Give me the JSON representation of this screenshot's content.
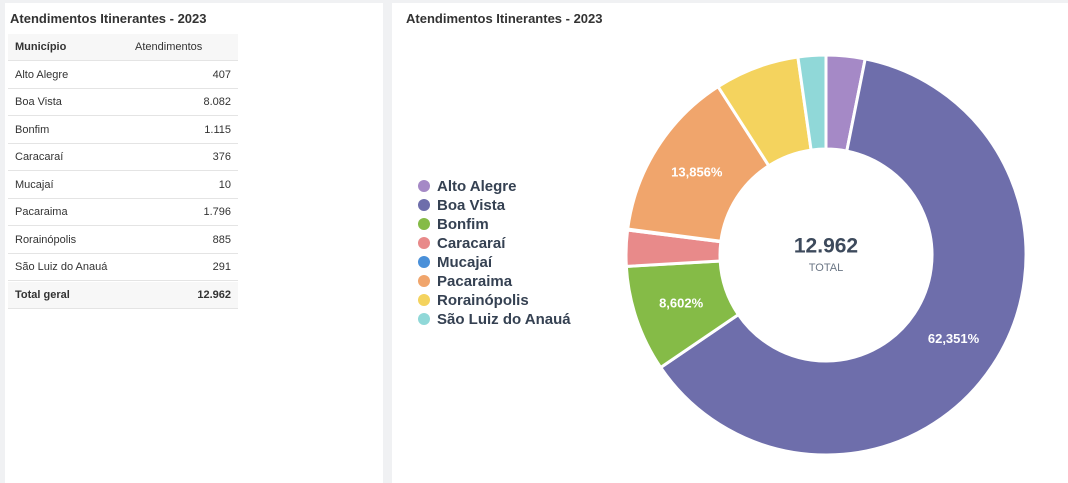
{
  "table": {
    "title": "Atendimentos Itinerantes - 2023",
    "header": [
      "Município",
      "Atendimentos"
    ],
    "rows": [
      [
        "Alto Alegre",
        "407"
      ],
      [
        "Boa Vista",
        "8.082"
      ],
      [
        "Bonfim",
        "1.115"
      ],
      [
        "Caracaraí",
        "376"
      ],
      [
        "Mucajaí",
        "10"
      ],
      [
        "Pacaraima",
        "1.796"
      ],
      [
        "Rorainópolis",
        "885"
      ],
      [
        "São Luiz do Anauá",
        "291"
      ]
    ],
    "total": [
      "Total geral",
      "12.962"
    ]
  },
  "chart_data": {
    "type": "donut",
    "title": "Atendimentos Itinerantes - 2023",
    "categories": [
      "Alto Alegre",
      "Boa Vista",
      "Bonfim",
      "Caracaraí",
      "Mucajaí",
      "Pacaraima",
      "Rorainópolis",
      "São Luiz do Anauá"
    ],
    "values": [
      3.14,
      62.351,
      8.602,
      2.901,
      0.077,
      13.856,
      6.828,
      2.245
    ],
    "value_labels": [
      null,
      "62,351%",
      "8,602%",
      null,
      null,
      "13,856%",
      null,
      null
    ],
    "colors": [
      "#a589c6",
      "#6e6eab",
      "#85bb47",
      "#e88a8a",
      "#4a90d9",
      "#f0a56c",
      "#f4d35e",
      "#90d8d8"
    ],
    "center_label": "12.962",
    "center_sublabel": "TOTAL",
    "legend": "left"
  }
}
